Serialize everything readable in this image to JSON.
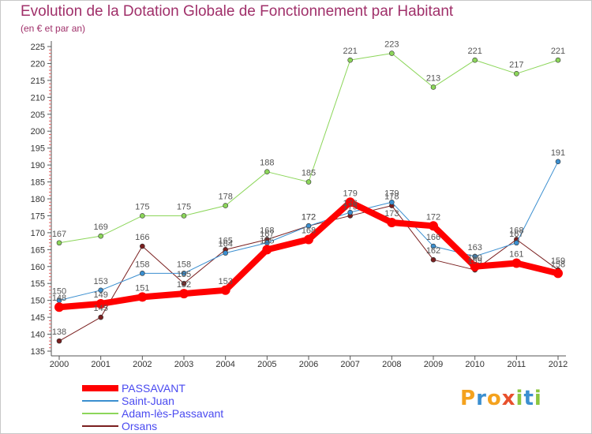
{
  "title": "Evolution de la Dotation Globale de Fonctionnement par Habitant",
  "subtitle": "(en € et par an)",
  "logo": {
    "letters": [
      "P",
      "r",
      "o",
      "x",
      "i",
      "t",
      "i"
    ],
    "colors": [
      "#f4a21e",
      "#3b8fd0",
      "#f4a21e",
      "#e8502c",
      "#8cc63f",
      "#3b8fd0",
      "#8cc63f"
    ]
  },
  "chart_data": {
    "type": "line",
    "title": "Evolution de la Dotation Globale de Fonctionnement par Habitant",
    "subtitle": "(en € et par an)",
    "xlabel": "",
    "ylabel": "",
    "ylim": [
      135,
      225
    ],
    "ytick_step": 5,
    "grid": false,
    "legend_position": "bottom-left",
    "x": [
      "2000",
      "2001",
      "2002",
      "2003",
      "2004",
      "2005",
      "2006",
      "2007",
      "2008",
      "2009",
      "2010",
      "2011",
      "2012"
    ],
    "series": [
      {
        "name": "PASSAVANT",
        "color": "#ff0000",
        "width": 8,
        "values": [
          148,
          149,
          151,
          152,
          153,
          165,
          168,
          179,
          173,
          172,
          160,
          161,
          158
        ]
      },
      {
        "name": "Saint-Juan",
        "color": "#3b8fd0",
        "width": 1,
        "values": [
          150,
          153,
          158,
          158,
          164,
          167,
          172,
          176,
          179,
          166,
          163,
          167,
          191
        ]
      },
      {
        "name": "Adam-lès-Passavant",
        "color": "#8cd65a",
        "width": 1,
        "values": [
          167,
          169,
          175,
          175,
          178,
          188,
          185,
          221,
          223,
          213,
          221,
          217,
          221
        ]
      },
      {
        "name": "Orsans",
        "color": "#7a1f1f",
        "width": 1,
        "values": [
          138,
          145,
          166,
          155,
          165,
          168,
          172,
          175,
          178,
          162,
          159,
          168,
          159
        ]
      }
    ]
  }
}
